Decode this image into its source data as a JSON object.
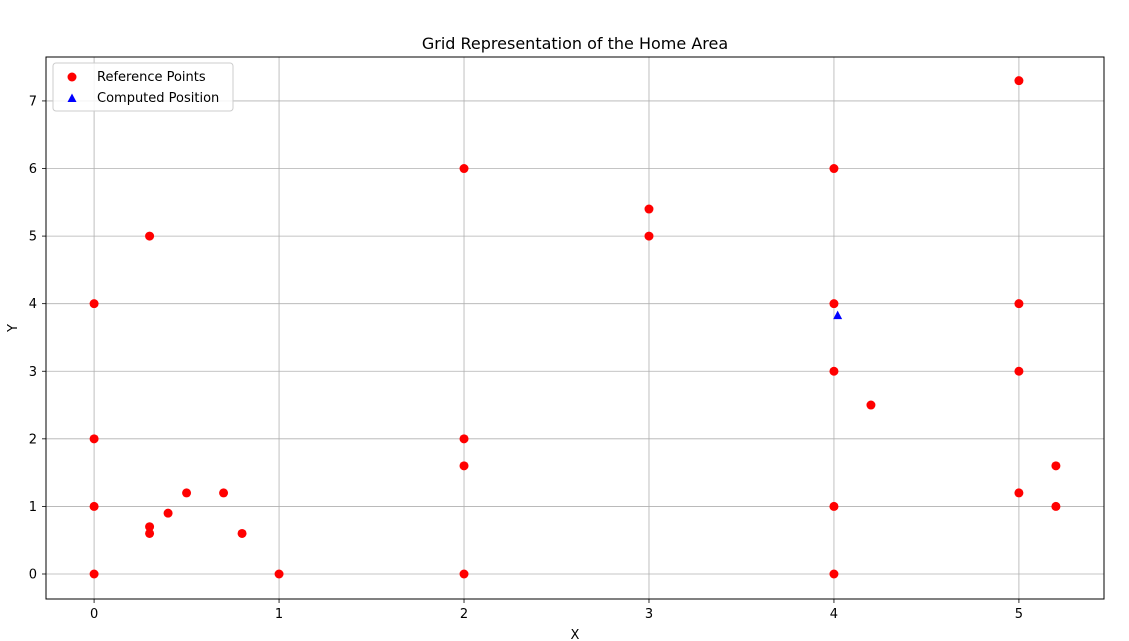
{
  "chart_data": {
    "type": "scatter",
    "title": "Grid Representation of the Home Area",
    "xlabel": "X",
    "ylabel": "Y",
    "xlim": [
      -0.26,
      5.46
    ],
    "ylim": [
      -0.37,
      7.65
    ],
    "xticks": [
      0,
      1,
      2,
      3,
      4,
      5
    ],
    "yticks": [
      0,
      1,
      2,
      3,
      4,
      5,
      6,
      7
    ],
    "grid": true,
    "legend_position": "upper-left",
    "series": [
      {
        "name": "Reference Points",
        "marker": "circle",
        "color": "#ff0000",
        "points": [
          [
            0,
            0
          ],
          [
            0,
            1
          ],
          [
            0,
            2
          ],
          [
            0,
            4
          ],
          [
            0.3,
            0.6
          ],
          [
            0.3,
            0.7
          ],
          [
            0.3,
            5
          ],
          [
            0.4,
            0.9
          ],
          [
            0.5,
            1.2
          ],
          [
            0.7,
            1.2
          ],
          [
            0.8,
            0.6
          ],
          [
            1,
            0
          ],
          [
            2,
            0
          ],
          [
            2,
            1.6
          ],
          [
            2,
            2
          ],
          [
            2,
            6
          ],
          [
            3,
            5
          ],
          [
            3,
            5.4
          ],
          [
            4,
            0
          ],
          [
            4,
            1
          ],
          [
            4,
            3
          ],
          [
            4,
            4
          ],
          [
            4,
            6
          ],
          [
            4.2,
            2.5
          ],
          [
            5,
            1.2
          ],
          [
            5,
            3
          ],
          [
            5,
            4
          ],
          [
            5,
            7.3
          ],
          [
            5.2,
            1
          ],
          [
            5.2,
            1.6
          ]
        ]
      },
      {
        "name": "Computed Position",
        "marker": "triangle",
        "color": "#0000ff",
        "points": [
          [
            4.02,
            3.83
          ]
        ]
      }
    ]
  }
}
